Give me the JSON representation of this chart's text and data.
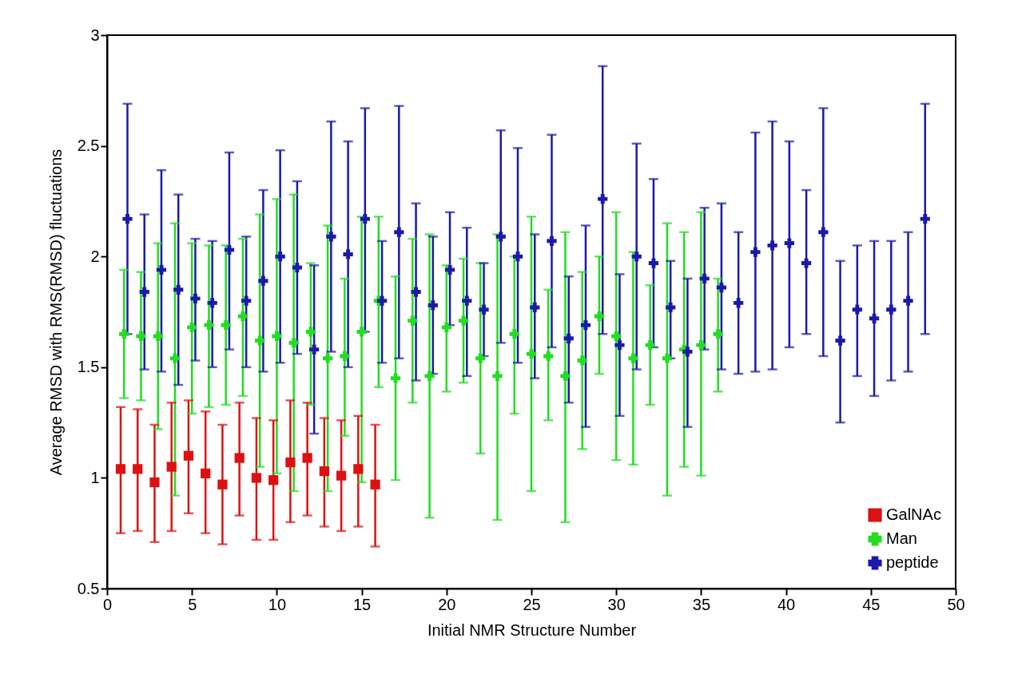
{
  "chart_data": {
    "type": "scatter",
    "xlabel": "Initial NMR Structure Number",
    "ylabel": "Average RMSD with RMS(RMSD) fluctuations",
    "xlim": [
      0,
      50
    ],
    "xticks": [
      0,
      5,
      10,
      15,
      20,
      25,
      30,
      35,
      40,
      45,
      50
    ],
    "ylim": [
      0.5,
      3
    ],
    "yticks": [
      0.5,
      1,
      1.5,
      2,
      2.5,
      3
    ],
    "grid": false,
    "legend": "bottom right",
    "series": [
      {
        "name": "GalNAc",
        "color": "#dd1111",
        "marker": "square",
        "x": [
          0.8,
          1.8,
          2.8,
          3.8,
          4.8,
          5.8,
          6.8,
          7.8,
          8.8,
          9.8,
          10.8,
          11.8,
          12.8,
          13.8,
          14.8,
          15.8
        ],
        "values": [
          1.04,
          1.04,
          0.98,
          1.05,
          1.1,
          1.02,
          0.97,
          1.09,
          1,
          0.99,
          1.07,
          1.09,
          1.03,
          1.01,
          1.04,
          0.97
        ],
        "errors": [
          [
            0.75,
            1.32
          ],
          [
            0.76,
            1.31
          ],
          [
            0.71,
            1.24
          ],
          [
            0.76,
            1.34
          ],
          [
            0.84,
            1.35
          ],
          [
            0.75,
            1.3
          ],
          [
            0.7,
            1.24
          ],
          [
            0.83,
            1.34
          ],
          [
            0.72,
            1.27
          ],
          [
            0.72,
            1.26
          ],
          [
            0.8,
            1.35
          ],
          [
            0.83,
            1.34
          ],
          [
            0.78,
            1.27
          ],
          [
            0.76,
            1.26
          ],
          [
            0.78,
            1.28
          ],
          [
            0.69,
            1.24
          ]
        ]
      },
      {
        "name": "Man",
        "color": "#22dd22",
        "marker": "cross",
        "x": [
          1,
          2,
          3,
          4,
          5,
          6,
          7,
          8,
          9,
          10,
          11,
          12,
          13,
          14,
          15,
          16,
          17,
          18,
          19,
          20,
          21,
          22,
          23,
          24,
          25,
          26,
          27,
          28,
          29,
          30,
          31,
          32,
          33,
          34,
          35,
          36
        ],
        "values": [
          1.65,
          1.64,
          1.64,
          1.54,
          1.68,
          1.69,
          1.69,
          1.73,
          1.62,
          1.64,
          1.61,
          1.66,
          1.54,
          1.55,
          1.66,
          1.8,
          1.45,
          1.71,
          1.46,
          1.68,
          1.71,
          1.54,
          1.46,
          1.65,
          1.56,
          1.55,
          1.46,
          1.53,
          1.73,
          1.64,
          1.54,
          1.6,
          1.54,
          1.58,
          1.6,
          1.65
        ],
        "errors": [
          [
            1.36,
            1.94
          ],
          [
            1.35,
            1.93
          ],
          [
            1.22,
            2.06
          ],
          [
            0.92,
            2.15
          ],
          [
            1.29,
            2.06
          ],
          [
            1.32,
            2.05
          ],
          [
            1.33,
            2.05
          ],
          [
            1.37,
            2.08
          ],
          [
            1.05,
            2.19
          ],
          [
            1.02,
            2.26
          ],
          [
            0.94,
            2.28
          ],
          [
            1.33,
            1.97
          ],
          [
            0.94,
            2.14
          ],
          [
            1.19,
            1.9
          ],
          [
            0.98,
            2.18
          ],
          [
            1.41,
            2.18
          ],
          [
            0.99,
            1.91
          ],
          [
            1.34,
            2.08
          ],
          [
            0.82,
            2.1
          ],
          [
            1.39,
            1.96
          ],
          [
            1.43,
            1.99
          ],
          [
            1.11,
            1.97
          ],
          [
            0.81,
            2.1
          ],
          [
            1.29,
            2
          ],
          [
            0.94,
            2.18
          ],
          [
            1.26,
            1.85
          ],
          [
            0.8,
            2.11
          ],
          [
            1.13,
            1.93
          ],
          [
            1.47,
            2
          ],
          [
            1.08,
            2.2
          ],
          [
            1.06,
            2.02
          ],
          [
            1.33,
            1.87
          ],
          [
            0.92,
            2.15
          ],
          [
            1.05,
            2.11
          ],
          [
            1.01,
            2.2
          ],
          [
            1.39,
            1.9
          ]
        ]
      },
      {
        "name": "peptide",
        "color": "#1a1aaa",
        "marker": "cross",
        "x": [
          1.2,
          2.2,
          3.2,
          4.2,
          5.2,
          6.2,
          7.2,
          8.2,
          9.2,
          10.2,
          11.2,
          12.2,
          13.2,
          14.2,
          15.2,
          16.2,
          17.2,
          18.2,
          19.2,
          20.2,
          21.2,
          22.2,
          23.2,
          24.2,
          25.2,
          26.2,
          27.2,
          28.2,
          29.2,
          30.2,
          31.2,
          32.2,
          33.2,
          34.2,
          35.2,
          36.2,
          37.2,
          38.2,
          39.2,
          40.2,
          41.2,
          42.2,
          43.2,
          44.2,
          45.2,
          46.2,
          47.2,
          48.2
        ],
        "values": [
          2.17,
          1.84,
          1.94,
          1.85,
          1.81,
          1.79,
          2.03,
          1.8,
          1.89,
          2,
          1.95,
          1.58,
          2.09,
          2.01,
          2.17,
          1.8,
          2.11,
          1.84,
          1.78,
          1.94,
          1.8,
          1.76,
          2.09,
          2,
          1.77,
          2.07,
          1.63,
          1.69,
          2.26,
          1.6,
          2,
          1.97,
          1.77,
          1.57,
          1.9,
          1.86,
          1.79,
          2.02,
          2.05,
          2.06,
          1.97,
          2.11,
          1.62,
          1.76,
          1.72,
          1.76,
          1.8,
          2.17
        ],
        "errors": [
          [
            1.65,
            2.69
          ],
          [
            1.49,
            2.19
          ],
          [
            1.48,
            2.39
          ],
          [
            1.42,
            2.28
          ],
          [
            1.53,
            2.08
          ],
          [
            1.5,
            2.07
          ],
          [
            1.58,
            2.47
          ],
          [
            1.5,
            2.09
          ],
          [
            1.48,
            2.3
          ],
          [
            1.52,
            2.48
          ],
          [
            1.56,
            2.34
          ],
          [
            1.2,
            1.96
          ],
          [
            1.57,
            2.61
          ],
          [
            1.5,
            2.52
          ],
          [
            1.66,
            2.67
          ],
          [
            1.52,
            2.07
          ],
          [
            1.54,
            2.68
          ],
          [
            1.44,
            2.24
          ],
          [
            1.47,
            2.09
          ],
          [
            1.69,
            2.2
          ],
          [
            1.46,
            2.13
          ],
          [
            1.55,
            1.97
          ],
          [
            1.61,
            2.57
          ],
          [
            1.52,
            2.49
          ],
          [
            1.45,
            2.1
          ],
          [
            1.59,
            2.55
          ],
          [
            1.34,
            1.91
          ],
          [
            1.23,
            2.14
          ],
          [
            1.65,
            2.86
          ],
          [
            1.28,
            1.92
          ],
          [
            1.49,
            2.51
          ],
          [
            1.59,
            2.35
          ],
          [
            1.54,
            1.98
          ],
          [
            1.23,
            1.9
          ],
          [
            1.58,
            2.22
          ],
          [
            1.49,
            2.24
          ],
          [
            1.47,
            2.11
          ],
          [
            1.48,
            2.56
          ],
          [
            1.49,
            2.61
          ],
          [
            1.59,
            2.52
          ],
          [
            1.65,
            2.3
          ],
          [
            1.55,
            2.67
          ],
          [
            1.25,
            1.98
          ],
          [
            1.46,
            2.05
          ],
          [
            1.37,
            2.07
          ],
          [
            1.44,
            2.07
          ],
          [
            1.48,
            2.11
          ],
          [
            1.65,
            2.69
          ]
        ]
      }
    ]
  }
}
